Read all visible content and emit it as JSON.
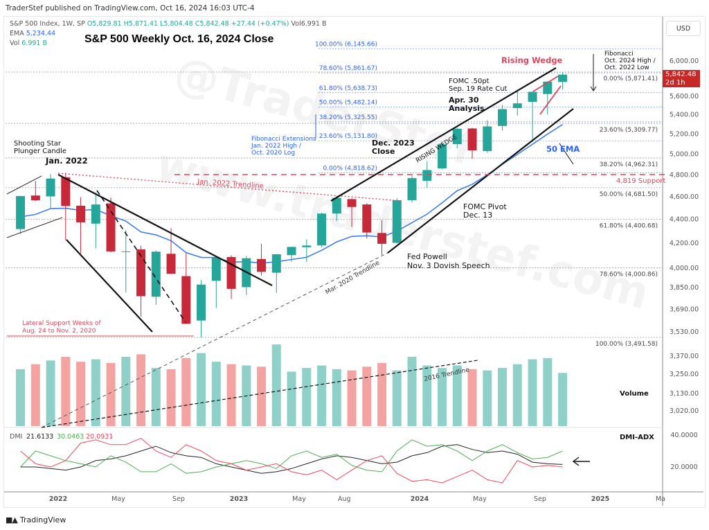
{
  "publisher_line": "TraderStef published on TradingView.com, Oct 16, 2024 16:03 UTC-4",
  "legend": {
    "symbol": "S&P 500 Index, 1W, SP",
    "open": "O5,829.81",
    "high": "H5,871.41",
    "low": "L5,804.48",
    "close": "C5,842.48",
    "change": "+27.44 (+0.47%)",
    "vol": "Vol6.991 B",
    "ema_label": "EMA",
    "ema_value": "5,234.44",
    "vol_label": "Vol",
    "vol_value": "6.991 B"
  },
  "currency_button": "USD",
  "price_tag": {
    "price": "5,842.48",
    "countdown": "2d 1h"
  },
  "watermark": [
    "@TraderStef",
    "www.traderstef.com"
  ],
  "footer": {
    "logo": "TV",
    "brand": "TradingView"
  },
  "colors": {
    "up": "#26a69a",
    "down": "#c62a3a",
    "ema": "#3d7ff0",
    "vol_up": "#8fd1c9",
    "vol_down": "#f4a3a3",
    "adx": "#222222",
    "plus_di": "#4caf50",
    "minus_di": "#f0475b",
    "support": "#e0455b",
    "fib_ext": "#2962ff"
  },
  "chart_data": {
    "type": "candlestick",
    "title": "S&P 500 Weekly Oct. 16, 2024 Close",
    "months": [
      "2021-10",
      "2021-11",
      "2021-12",
      "2022-01",
      "2022-02",
      "2022-03",
      "2022-04",
      "2022-05",
      "2022-06",
      "2022-07",
      "2022-08",
      "2022-09",
      "2022-10",
      "2022-11",
      "2022-12",
      "2023-01",
      "2023-02",
      "2023-03",
      "2023-04",
      "2023-05",
      "2023-06",
      "2023-07",
      "2023-08",
      "2023-09",
      "2023-10",
      "2023-11",
      "2023-12",
      "2024-01",
      "2024-02",
      "2024-03",
      "2024-04",
      "2024-05",
      "2024-06",
      "2024-07",
      "2024-08",
      "2024-09",
      "2024-10"
    ],
    "ohlc": [
      [
        4317,
        4608,
        4278,
        4605
      ],
      [
        4610,
        4743,
        4560,
        4567
      ],
      [
        4602,
        4808,
        4495,
        4766
      ],
      [
        4778,
        4819,
        4223,
        4516
      ],
      [
        4519,
        4595,
        4115,
        4374
      ],
      [
        4363,
        4637,
        4157,
        4530
      ],
      [
        4540,
        4593,
        4124,
        4132
      ],
      [
        4130,
        4307,
        3811,
        4132
      ],
      [
        4149,
        4178,
        3637,
        3785
      ],
      [
        3781,
        4140,
        3721,
        4130
      ],
      [
        4113,
        4325,
        3955,
        3955
      ],
      [
        3937,
        4119,
        3584,
        3586
      ],
      [
        3609,
        3906,
        3492,
        3872
      ],
      [
        3901,
        4080,
        3699,
        4080
      ],
      [
        4087,
        4101,
        3765,
        3840
      ],
      [
        3853,
        4095,
        3794,
        4077
      ],
      [
        4071,
        4195,
        3943,
        3970
      ],
      [
        3963,
        4110,
        3809,
        4109
      ],
      [
        4102,
        4170,
        4049,
        4169
      ],
      [
        4166,
        4231,
        4048,
        4180
      ],
      [
        4181,
        4458,
        4166,
        4450
      ],
      [
        4450,
        4607,
        4385,
        4589
      ],
      [
        4578,
        4584,
        4335,
        4508
      ],
      [
        4530,
        4541,
        4238,
        4288
      ],
      [
        4284,
        4393,
        4104,
        4194
      ],
      [
        4202,
        4587,
        4197,
        4568
      ],
      [
        4568,
        4793,
        4547,
        4770
      ],
      [
        4745,
        4932,
        4682,
        4846
      ],
      [
        4862,
        5111,
        4853,
        5096
      ],
      [
        5098,
        5265,
        5057,
        5254
      ],
      [
        5257,
        5264,
        4953,
        5036
      ],
      [
        5029,
        5342,
        5012,
        5278
      ],
      [
        5283,
        5506,
        5235,
        5460
      ],
      [
        5471,
        5670,
        5391,
        5522
      ],
      [
        5538,
        5651,
        5120,
        5648
      ],
      [
        5624,
        5768,
        5403,
        5762
      ],
      [
        5758,
        5871,
        5674,
        5842
      ]
    ],
    "volume_billions": [
      4.6,
      5.0,
      5.3,
      5.6,
      5.2,
      5.4,
      5.1,
      5.6,
      5.8,
      4.7,
      4.6,
      5.5,
      5.9,
      5.2,
      5.0,
      4.9,
      4.8,
      6.6,
      4.4,
      4.7,
      4.9,
      4.6,
      4.5,
      4.8,
      5.1,
      4.5,
      5.6,
      4.9,
      4.7,
      4.9,
      4.6,
      4.5,
      4.7,
      5.0,
      5.4,
      5.5,
      4.3
    ],
    "dmi": {
      "adx": [
        20,
        20,
        19,
        18,
        20,
        24,
        25,
        27,
        30,
        33,
        29,
        27,
        26,
        22,
        20,
        18,
        16,
        17,
        19,
        22,
        25,
        27,
        26,
        24,
        22,
        23,
        27,
        29,
        33,
        34,
        31,
        29,
        30,
        28,
        23,
        22,
        21.6
      ],
      "plus_di": [
        20,
        30,
        27,
        24,
        22,
        20,
        27,
        23,
        17,
        17,
        22,
        16,
        17,
        20,
        22,
        24,
        22,
        19,
        27,
        30,
        26,
        28,
        21,
        18,
        17,
        30,
        37,
        33,
        34,
        30,
        24,
        30,
        34,
        29,
        25,
        26,
        30
      ],
      "minus_di": [
        30,
        22,
        20,
        24,
        35,
        37,
        34,
        34,
        38,
        30,
        26,
        34,
        30,
        24,
        22,
        18,
        20,
        22,
        17,
        15,
        18,
        12,
        18,
        24,
        27,
        16,
        11,
        12,
        10,
        14,
        18,
        12,
        10,
        24,
        20,
        21,
        20
      ],
      "legend": {
        "name": "DMI",
        "adx": "21.6133",
        "plus_di": "30.0463",
        "minus_di": "20.0931"
      }
    },
    "ema_period_label": "50 EMA",
    "y_axis_ticks": [
      "6,000.00",
      "5,600.00",
      "5,400.00",
      "5,200.00",
      "5,000.00",
      "4,800.00",
      "4,600.00",
      "4,400.00",
      "4,200.00",
      "4,000.00",
      "3,850.00",
      "3,690.00",
      "3,530.00"
    ],
    "y_axis_tick_values": [
      6000,
      5600,
      5400,
      5200,
      5000,
      4800,
      4600,
      4400,
      4200,
      4000,
      3850,
      3690,
      3530
    ],
    "lower_axis_ticks": [
      "3,370.00",
      "3,250.00",
      "3,130.00",
      "3,020.00"
    ],
    "dmi_axis_ticks": [
      "40.0000",
      "20.0000"
    ],
    "dmi_axis_tick_values": [
      40,
      20
    ],
    "x_axis_ticks": [
      "2022",
      "May",
      "Sep",
      "2023",
      "May",
      "Aug",
      "2024",
      "May",
      "Sep",
      "2025",
      "Ma"
    ],
    "x_axis_tick_months": [
      "2022-01",
      "2022-05",
      "2022-09",
      "2023-01",
      "2023-05",
      "2023-08",
      "2024-01",
      "2024-05",
      "2024-09",
      "2025-01",
      "2025-05"
    ],
    "fib_retracement": {
      "title": [
        "Fibonacci",
        "Oct. 2024 High /",
        "Oct. 2022 Low"
      ],
      "levels": [
        {
          "label": "0.00% (5,871.41)",
          "price": 5871.41
        },
        {
          "label": "23.60% (5,309.77)",
          "price": 5309.77
        },
        {
          "label": "38.20% (4,962.31)",
          "price": 4962.31
        },
        {
          "label": "50.00% (4,681.50)",
          "price": 4681.5
        },
        {
          "label": "61.80% (4,400.68)",
          "price": 4400.68
        },
        {
          "label": "78.60% (4,000.86)",
          "price": 4000.86
        },
        {
          "label": "100.00% (3,491.58)",
          "price": 3491.58
        }
      ]
    },
    "fib_extension": {
      "title": [
        "Fibonacci Extensions",
        "Jan. 2022 High /",
        "Oct. 2020 Log"
      ],
      "levels": [
        {
          "label": "100.00% (6,145.66)",
          "price": 6145.66
        },
        {
          "label": "78.60% (5,861.67)",
          "price": 5861.67
        },
        {
          "label": "61.80% (5,638.73)",
          "price": 5638.73
        },
        {
          "label": "50.00% (5,482.14)",
          "price": 5482.14
        },
        {
          "label": "38.20% (5,325.55)",
          "price": 5325.55
        },
        {
          "label": "23.60% (5,131.80)",
          "price": 5131.8
        },
        {
          "label": "0.00% (4,818.62)",
          "price": 4818.62
        }
      ]
    },
    "support": {
      "label": "4,819 Support",
      "price": 4819
    },
    "annotations": {
      "shooting_star": [
        "Shooting Star",
        "Plunger Candle"
      ],
      "jan_2022": "Jan. 2022",
      "jan_trendline": "Jan. 2022 Trendline",
      "lateral_support": [
        "Lateral Support Weeks of",
        "Aug. 24 to Nov. 2, 2020"
      ],
      "dec_2023": [
        "Dec. 2023",
        "Close"
      ],
      "rising_wedge_channel": "RISING WEDGE",
      "apr_30": [
        "Apr. 30",
        "Analysis"
      ],
      "fomc_cut": [
        "FOMC .50pt",
        "Sep. 19 Rate Cut"
      ],
      "rising_wedge": "Rising Wedge",
      "fomc_pivot": [
        "FOMC Pivot",
        "Dec. 13"
      ],
      "fed_powell": [
        "Fed Powell",
        "Nov. 3 Dovish Speech"
      ],
      "mar_2020_trendline": "Mar. 2020 Trendline",
      "trendline_2016": "2016 Trendline",
      "volume_label": "Volume",
      "dmi_label": "DMI-ADX"
    }
  }
}
